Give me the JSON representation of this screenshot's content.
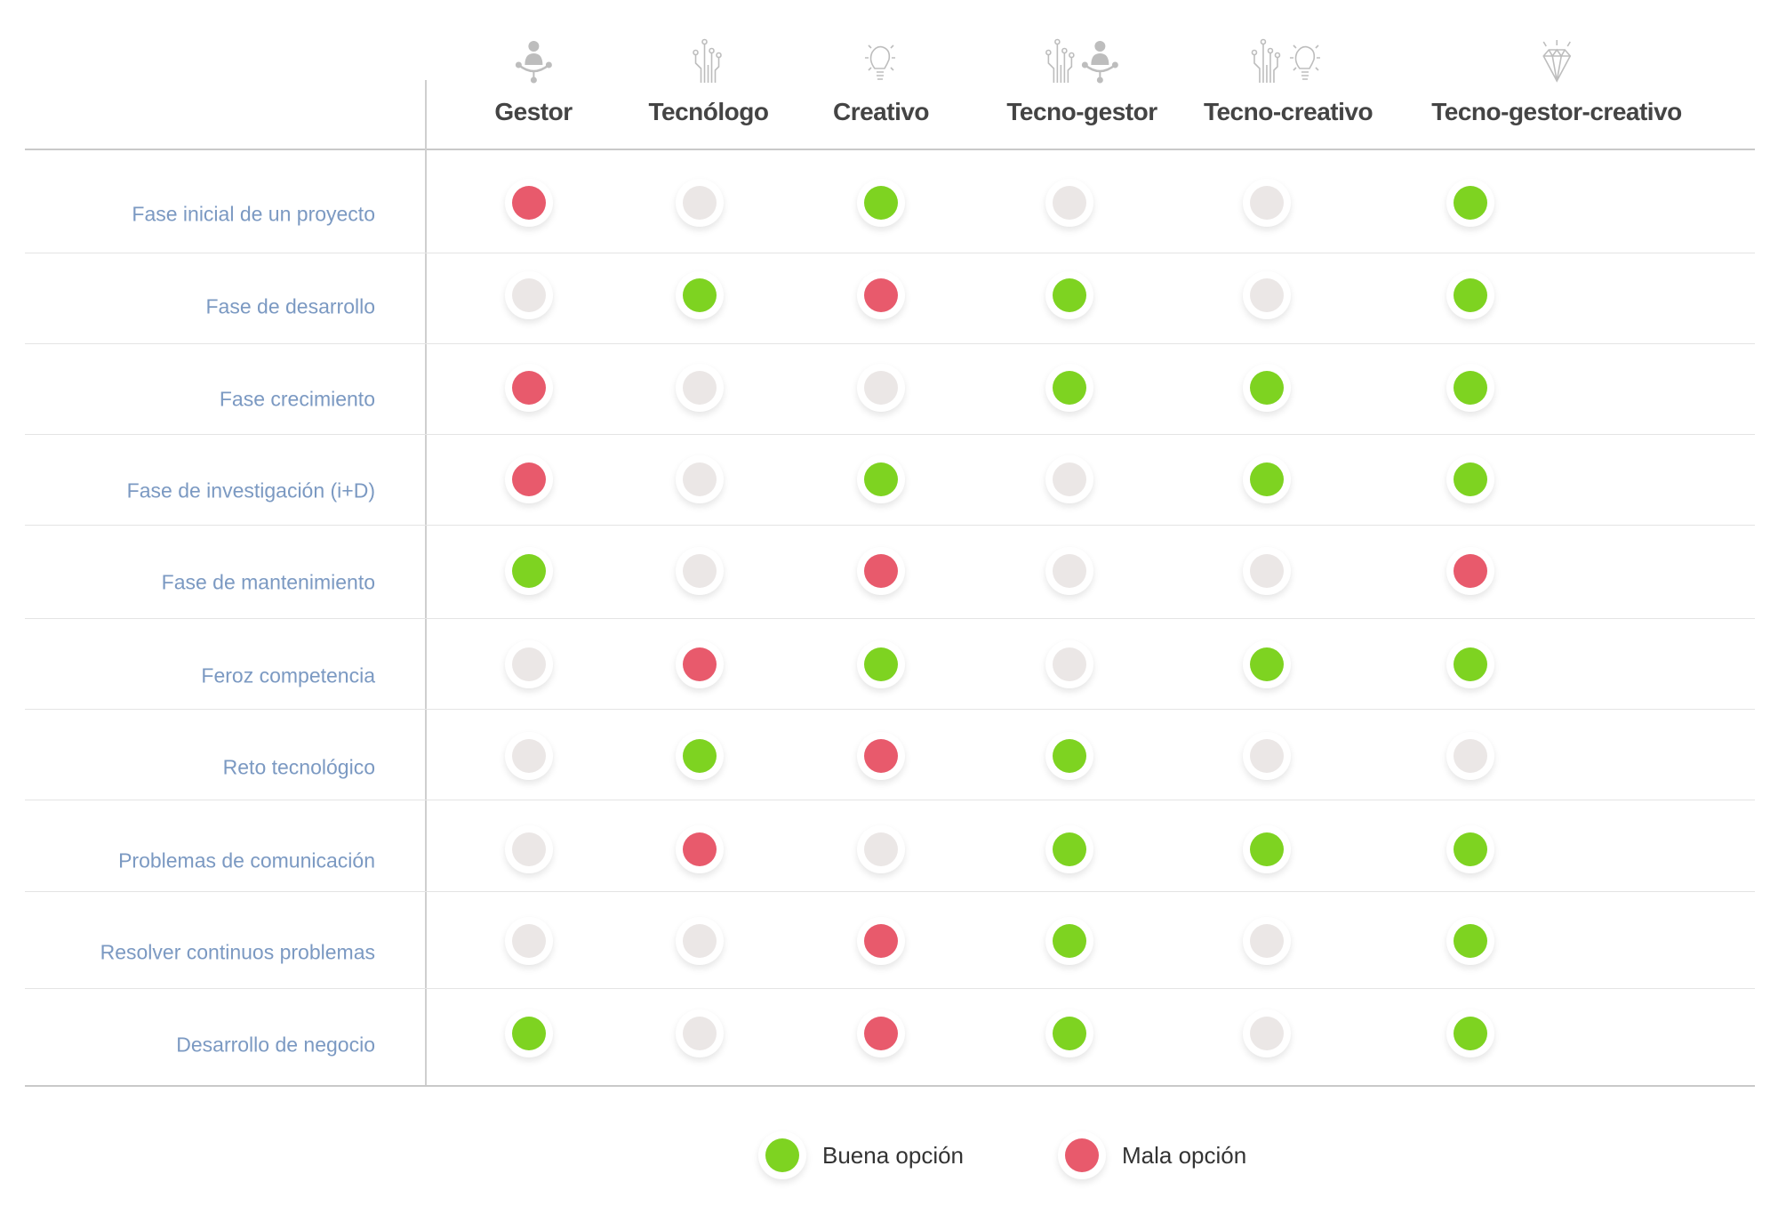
{
  "colors": {
    "good": "#7ed321",
    "bad": "#e85a6c",
    "neutral": "#ebe7e6",
    "row_label": "#7b99c2",
    "icon": "#bdbdbd"
  },
  "columns": [
    {
      "label": "Gestor",
      "icons": [
        "manager-icon"
      ]
    },
    {
      "label": "Tecnólogo",
      "icons": [
        "circuit-icon"
      ]
    },
    {
      "label": "Creativo",
      "icons": [
        "lightbulb-icon"
      ]
    },
    {
      "label": "Tecno-gestor",
      "icons": [
        "circuit-icon",
        "manager-icon"
      ]
    },
    {
      "label": "Tecno-creativo",
      "icons": [
        "circuit-icon",
        "lightbulb-icon"
      ]
    },
    {
      "label": "Tecno-gestor-creativo",
      "icons": [
        "diamond-icon"
      ]
    }
  ],
  "rows": [
    {
      "label": "Fase inicial de un proyecto",
      "values": [
        "bad",
        "neutral",
        "good",
        "neutral",
        "neutral",
        "good"
      ]
    },
    {
      "label": "Fase de desarrollo",
      "values": [
        "neutral",
        "good",
        "bad",
        "good",
        "neutral",
        "good"
      ]
    },
    {
      "label": "Fase crecimiento",
      "values": [
        "bad",
        "neutral",
        "neutral",
        "good",
        "good",
        "good"
      ]
    },
    {
      "label": "Fase de investigación (i+D)",
      "values": [
        "bad",
        "neutral",
        "good",
        "neutral",
        "good",
        "good"
      ]
    },
    {
      "label": "Fase de mantenimiento",
      "values": [
        "good",
        "neutral",
        "bad",
        "neutral",
        "neutral",
        "bad"
      ]
    },
    {
      "label": "Feroz competencia",
      "values": [
        "neutral",
        "bad",
        "good",
        "neutral",
        "good",
        "good"
      ]
    },
    {
      "label": "Reto tecnológico",
      "values": [
        "neutral",
        "good",
        "bad",
        "good",
        "neutral",
        "neutral"
      ]
    },
    {
      "label": "Problemas de comunicación",
      "values": [
        "neutral",
        "bad",
        "neutral",
        "good",
        "good",
        "good"
      ]
    },
    {
      "label": "Resolver continuos problemas",
      "values": [
        "neutral",
        "neutral",
        "bad",
        "good",
        "neutral",
        "good"
      ]
    },
    {
      "label": "Desarrollo de negocio",
      "values": [
        "good",
        "neutral",
        "bad",
        "good",
        "neutral",
        "good"
      ]
    }
  ],
  "legend": {
    "good": "Buena opción",
    "bad": "Mala opción"
  }
}
